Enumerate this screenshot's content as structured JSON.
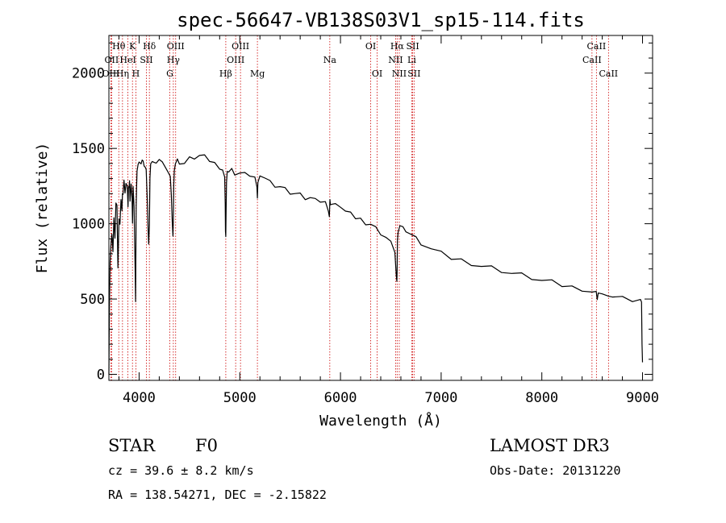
{
  "chart_data": {
    "type": "line",
    "title": "spec-56647-VB138S03V1_sp15-114.fits",
    "xlabel": "Wavelength (Å)",
    "ylabel": "Flux (relative)",
    "xlim": [
      3700,
      9100
    ],
    "ylim": [
      -40,
      2250
    ],
    "x_ticks": [
      4000,
      5000,
      6000,
      7000,
      8000,
      9000
    ],
    "y_ticks": [
      0,
      500,
      1000,
      1500,
      2000
    ],
    "line_color": "#000000",
    "marker_color": "#cc0000",
    "series": [
      {
        "name": "flux",
        "x": [
          3700,
          3705,
          3712,
          3720,
          3730,
          3740,
          3750,
          3760,
          3770,
          3780,
          3790,
          3800,
          3810,
          3820,
          3830,
          3835,
          3840,
          3850,
          3860,
          3870,
          3880,
          3885,
          3890,
          3895,
          3900,
          3905,
          3910,
          3920,
          3930,
          3935,
          3940,
          3950,
          3960,
          3965,
          3968,
          3971,
          3975,
          3980,
          3990,
          4000,
          4010,
          4020,
          4030,
          4040,
          4050,
          4060,
          4070,
          4080,
          4090,
          4095,
          4102,
          4108,
          4115,
          4130,
          4150,
          4170,
          4200,
          4230,
          4260,
          4290,
          4310,
          4320,
          4330,
          4336,
          4340,
          4344,
          4350,
          4360,
          4380,
          4400,
          4450,
          4500,
          4550,
          4600,
          4650,
          4700,
          4750,
          4800,
          4830,
          4850,
          4855,
          4858,
          4861,
          4864,
          4868,
          4875,
          4890,
          4920,
          4950,
          5000,
          5050,
          5100,
          5150,
          5170,
          5175,
          5180,
          5200,
          5250,
          5300,
          5350,
          5400,
          5450,
          5500,
          5550,
          5600,
          5650,
          5700,
          5750,
          5800,
          5850,
          5880,
          5890,
          5895,
          5900,
          5920,
          5950,
          6000,
          6050,
          6100,
          6150,
          6200,
          6250,
          6300,
          6350,
          6400,
          6450,
          6500,
          6540,
          6555,
          6560,
          6563,
          6566,
          6572,
          6590,
          6620,
          6650,
          6700,
          6750,
          6800,
          6900,
          7000,
          7100,
          7200,
          7300,
          7400,
          7500,
          7600,
          7700,
          7800,
          7900,
          8000,
          8100,
          8200,
          8300,
          8400,
          8500,
          8540,
          8550,
          8560,
          8600,
          8660,
          8700,
          8800,
          8900,
          8980,
          8990,
          8995,
          9000
        ],
        "y": [
          0,
          450,
          750,
          870,
          930,
          800,
          1050,
          900,
          1120,
          1130,
          700,
          1050,
          1000,
          1150,
          1100,
          1200,
          1180,
          1300,
          1200,
          1250,
          1260,
          1200,
          1130,
          1250,
          1230,
          1300,
          1150,
          1250,
          1180,
          1000,
          1230,
          1120,
          700,
          500,
          850,
          1100,
          1250,
          1350,
          1380,
          1420,
          1400,
          1380,
          1430,
          1410,
          1400,
          1380,
          1350,
          1200,
          950,
          850,
          1000,
          1300,
          1380,
          1420,
          1400,
          1420,
          1430,
          1400,
          1390,
          1340,
          1300,
          1200,
          1000,
          900,
          1050,
          1250,
          1370,
          1400,
          1420,
          1410,
          1400,
          1430,
          1440,
          1450,
          1440,
          1420,
          1400,
          1380,
          1360,
          1300,
          1150,
          950,
          900,
          1100,
          1270,
          1330,
          1350,
          1360,
          1340,
          1340,
          1330,
          1330,
          1310,
          1230,
          1180,
          1270,
          1300,
          1310,
          1280,
          1260,
          1250,
          1230,
          1210,
          1200,
          1190,
          1170,
          1170,
          1150,
          1150,
          1140,
          1100,
          1050,
          1150,
          1140,
          1130,
          1120,
          1120,
          1080,
          1060,
          1040,
          1030,
          1010,
          1000,
          970,
          940,
          910,
          870,
          820,
          650,
          600,
          700,
          880,
          960,
          990,
          970,
          960,
          930,
          900,
          870,
          830,
          800,
          770,
          760,
          740,
          720,
          710,
          690,
          670,
          660,
          640,
          620,
          610,
          590,
          580,
          570,
          550,
          540,
          510,
          540,
          520,
          530,
          510,
          500,
          490,
          490,
          480,
          200,
          80
        ]
      }
    ],
    "spectral_lines": [
      {
        "label": "Hθ",
        "wavelength": 3798,
        "row": 1
      },
      {
        "label": "OII",
        "wavelength": 3727,
        "row": 2
      },
      {
        "label": "OIII",
        "wavelength": 3720,
        "row": 3
      },
      {
        "label": "Hη",
        "wavelength": 3835,
        "row": 3
      },
      {
        "label": "HeI",
        "wavelength": 3889,
        "row": 2
      },
      {
        "label": "K",
        "wavelength": 3934,
        "row": 1
      },
      {
        "label": "SII",
        "wavelength": 4072,
        "row": 2
      },
      {
        "label": "H",
        "wavelength": 3968,
        "row": 3
      },
      {
        "label": "Hδ",
        "wavelength": 4102,
        "row": 1
      },
      {
        "label": "OIII",
        "wavelength": 4363,
        "row": 1
      },
      {
        "label": "Hγ",
        "wavelength": 4340,
        "row": 2
      },
      {
        "label": "G",
        "wavelength": 4305,
        "row": 3
      },
      {
        "label": "Hβ",
        "wavelength": 4861,
        "row": 3
      },
      {
        "label": "OIII",
        "wavelength": 5007,
        "row": 1
      },
      {
        "label": "OIII",
        "wavelength": 4959,
        "row": 2
      },
      {
        "label": "Mg",
        "wavelength": 5175,
        "row": 3
      },
      {
        "label": "Na",
        "wavelength": 5894,
        "row": 2
      },
      {
        "label": "OI",
        "wavelength": 6300,
        "row": 1
      },
      {
        "label": "OI",
        "wavelength": 6364,
        "row": 3
      },
      {
        "label": "Hα",
        "wavelength": 6563,
        "row": 1
      },
      {
        "label": "NII",
        "wavelength": 6548,
        "row": 2
      },
      {
        "label": "NII",
        "wavelength": 6584,
        "row": 3
      },
      {
        "label": "SII",
        "wavelength": 6717,
        "row": 1
      },
      {
        "label": "Li",
        "wavelength": 6708,
        "row": 2
      },
      {
        "label": "SII",
        "wavelength": 6731,
        "row": 3
      },
      {
        "label": "CaII",
        "wavelength": 8542,
        "row": 1
      },
      {
        "label": "CaII",
        "wavelength": 8498,
        "row": 2
      },
      {
        "label": "CaII",
        "wavelength": 8662,
        "row": 3
      }
    ]
  },
  "info": {
    "object_class": "STAR",
    "subclass": "F0",
    "survey": "LAMOST DR3",
    "cz": "cz = 39.6 ± 8.2 km/s",
    "obs_date": "Obs-Date: 20131220",
    "coords": "RA = 138.54271, DEC =  -2.15822"
  }
}
